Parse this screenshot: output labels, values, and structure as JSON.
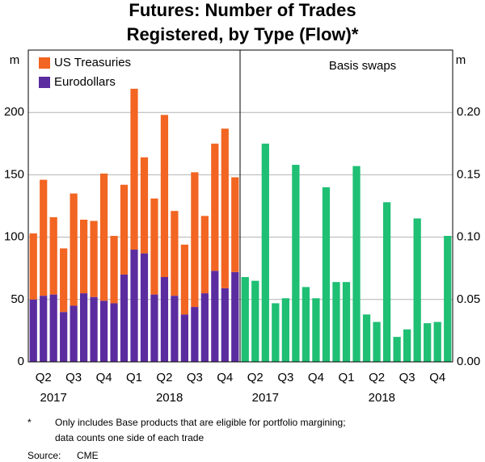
{
  "title": [
    "Futures: Number of Trades",
    "Registered, by Type (Flow)*"
  ],
  "footnote_marker": "*",
  "footnote": [
    "Only includes Base products that are eligible for portfolio margining;",
    "data counts one side of each trade"
  ],
  "source_label": "Source:",
  "source": "CME",
  "chart_data": [
    {
      "type": "stacked_bar",
      "y_unit": "m",
      "categories": [
        null,
        "Q2",
        null,
        null,
        "Q3",
        null,
        null,
        "Q4",
        null,
        null,
        "Q1",
        null,
        null,
        "Q2",
        null,
        null,
        "Q3",
        null,
        null,
        "Q4",
        null
      ],
      "years": [
        "2017",
        "2018"
      ],
      "series": [
        {
          "name": "US Treasuries",
          "color": "#f26522",
          "values": [
            53,
            93,
            62,
            51,
            90,
            59,
            61,
            102,
            54,
            72,
            129,
            77,
            77,
            130,
            68,
            56,
            108,
            62,
            102,
            128,
            76
          ]
        },
        {
          "name": "Eurodollars",
          "color": "#5b2ca0",
          "values": [
            50,
            53,
            54,
            40,
            45,
            55,
            52,
            49,
            47,
            70,
            90,
            87,
            54,
            68,
            53,
            38,
            44,
            55,
            73,
            59,
            72
          ]
        }
      ],
      "ylim": [
        0,
        250
      ],
      "yticks": [
        0,
        50,
        100,
        150,
        200
      ],
      "grid": true
    },
    {
      "type": "bar",
      "panel_title": "Basis swaps",
      "y_unit": "m",
      "categories": [
        null,
        "Q2",
        null,
        null,
        "Q3",
        null,
        null,
        "Q4",
        null,
        null,
        "Q1",
        null,
        null,
        "Q2",
        null,
        null,
        "Q3",
        null,
        null,
        "Q4",
        null
      ],
      "years": [
        "2017",
        "2018"
      ],
      "color": "#1fbf74",
      "values": [
        0.068,
        0.065,
        0.175,
        0.047,
        0.051,
        0.158,
        0.06,
        0.051,
        0.14,
        0.064,
        0.064,
        0.157,
        0.038,
        0.032,
        0.128,
        0.02,
        0.026,
        0.115,
        0.031,
        0.032,
        0.101
      ],
      "ylim": [
        0,
        0.25
      ],
      "yticks": [
        {
          "value": 0,
          "label": "0.00"
        },
        {
          "value": 0.05,
          "label": "0.05"
        },
        {
          "value": 0.1,
          "label": "0.10"
        },
        {
          "value": 0.15,
          "label": "0.15"
        },
        {
          "value": 0.2,
          "label": "0.20"
        }
      ],
      "grid": true
    }
  ]
}
